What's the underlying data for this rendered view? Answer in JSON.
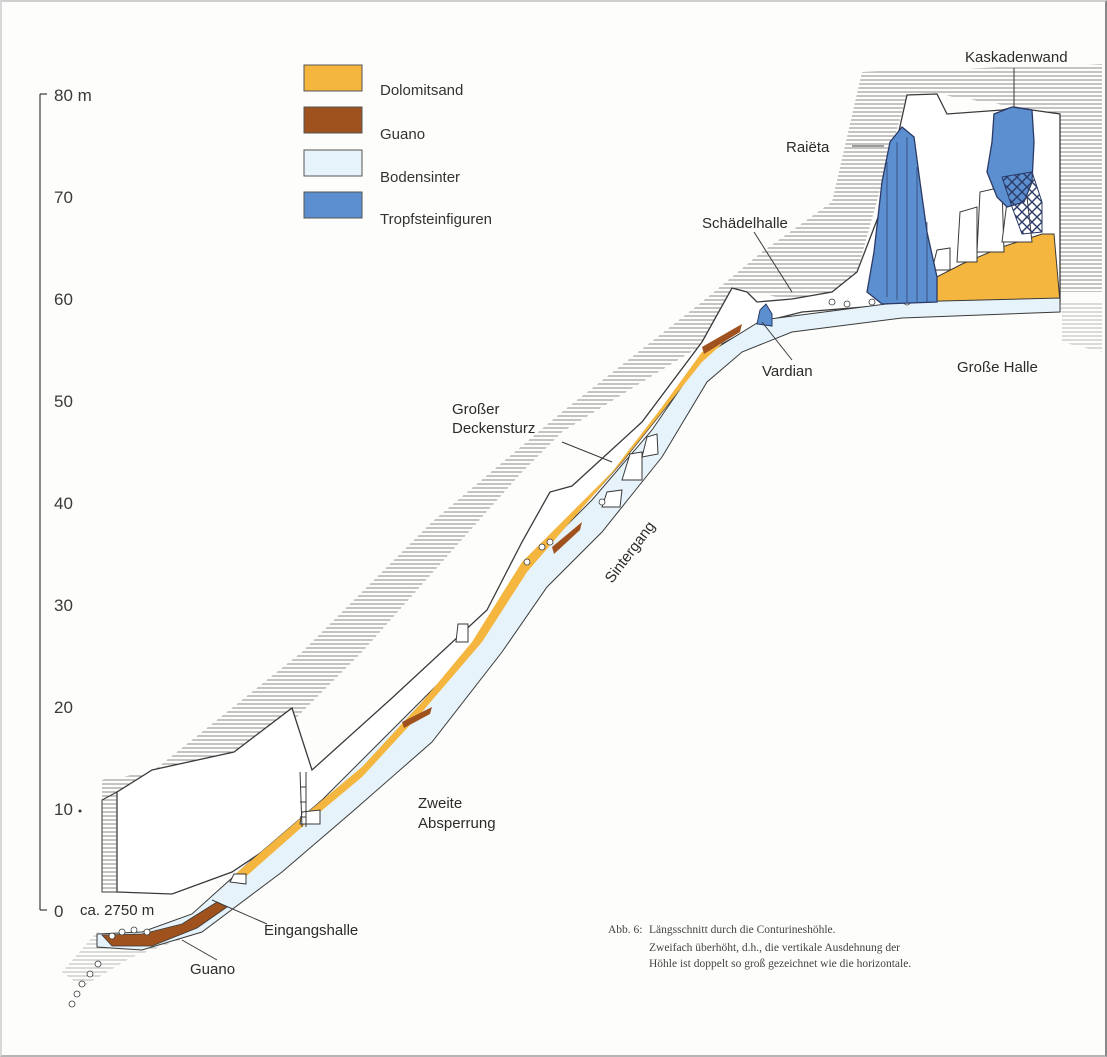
{
  "legend": [
    {
      "label": "Dolomitsand",
      "color": "#f4b63f"
    },
    {
      "label": "Guano",
      "color": "#a0521e"
    },
    {
      "label": "Bodensinter",
      "color": "#e6f3fa"
    },
    {
      "label": "Tropfsteinfiguren",
      "color": "#5b8fd0"
    }
  ],
  "scale": {
    "top_label": "80 m",
    "ticks": [
      "70",
      "60",
      "50",
      "40",
      "30",
      "20",
      "10",
      "0"
    ],
    "base_label": "ca. 2750 m"
  },
  "labels": {
    "kaskadenwand": "Kaskadenwand",
    "raieta": "Raiëta",
    "schaedelhalle": "Schädelhalle",
    "vardian": "Vardian",
    "grosse_halle": "Große Halle",
    "deckensturz_1": "Großer",
    "deckensturz_2": "Deckensturz",
    "sintergang": "Sintergang",
    "absperrung_1": "Zweite",
    "absperrung_2": "Absperrung",
    "eingangshalle": "Eingangshalle",
    "guano": "Guano"
  },
  "caption": {
    "number": "Abb. 6:",
    "line1": "Längsschnitt durch die Conturineshöhle.",
    "line2": "Zweifach überhöht, d.h., die vertikale Ausdehnung der",
    "line3": "Höhle ist doppelt so groß gezeichnet wie die horizontale."
  },
  "colors": {
    "rock_hatch": "#8a8a8a",
    "sand": "#f4b63f",
    "guano": "#a0521e",
    "sinter": "#e6f3fa",
    "dripstone": "#5b8fd0",
    "outline": "#3a3a3a"
  }
}
